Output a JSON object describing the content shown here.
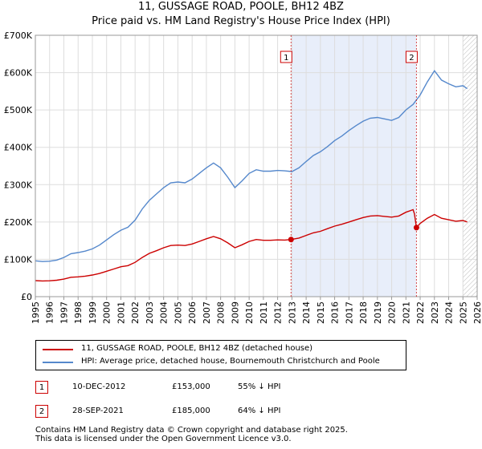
{
  "title_line1": "11, GUSSAGE ROAD, POOLE, BH12 4BZ",
  "title_line2": "Price paid vs. HM Land Registry's House Price Index (HPI)",
  "colors": {
    "price_line": "#cc0000",
    "hpi_line": "#5588cc",
    "shade": "#e8eefa",
    "grid": "#dddddd"
  },
  "chart_data": {
    "type": "line",
    "xlim": [
      1995,
      2026
    ],
    "ylim": [
      0,
      700000
    ],
    "x_ticks": [
      "1995",
      "1996",
      "1997",
      "1998",
      "1999",
      "2000",
      "2001",
      "2002",
      "2003",
      "2004",
      "2005",
      "2006",
      "2007",
      "2008",
      "2009",
      "2010",
      "2011",
      "2012",
      "2013",
      "2014",
      "2015",
      "2016",
      "2017",
      "2018",
      "2019",
      "2020",
      "2021",
      "2022",
      "2023",
      "2024",
      "2025",
      "2026"
    ],
    "y_ticks": [
      {
        "value": 0,
        "label": "£0"
      },
      {
        "value": 100000,
        "label": "£100K"
      },
      {
        "value": 200000,
        "label": "£200K"
      },
      {
        "value": 300000,
        "label": "£300K"
      },
      {
        "value": 400000,
        "label": "£400K"
      },
      {
        "value": 500000,
        "label": "£500K"
      },
      {
        "value": 600000,
        "label": "£600K"
      },
      {
        "value": 700000,
        "label": "£700K"
      }
    ],
    "shaded_range": [
      2012.94,
      2021.74
    ],
    "hatched_from": 2025.0,
    "series": [
      {
        "name": "HPI: Average price, detached house, Bournemouth Christchurch and Poole",
        "color": "#5588cc",
        "points": [
          [
            1995.0,
            96000
          ],
          [
            1995.5,
            94000
          ],
          [
            1996.0,
            95000
          ],
          [
            1996.5,
            98000
          ],
          [
            1997.0,
            105000
          ],
          [
            1997.5,
            115000
          ],
          [
            1998.0,
            118000
          ],
          [
            1998.5,
            122000
          ],
          [
            1999.0,
            128000
          ],
          [
            1999.5,
            138000
          ],
          [
            2000.0,
            152000
          ],
          [
            2000.5,
            166000
          ],
          [
            2001.0,
            178000
          ],
          [
            2001.5,
            186000
          ],
          [
            2002.0,
            205000
          ],
          [
            2002.5,
            235000
          ],
          [
            2003.0,
            258000
          ],
          [
            2003.5,
            275000
          ],
          [
            2004.0,
            292000
          ],
          [
            2004.5,
            305000
          ],
          [
            2005.0,
            307000
          ],
          [
            2005.5,
            305000
          ],
          [
            2006.0,
            315000
          ],
          [
            2006.5,
            330000
          ],
          [
            2007.0,
            345000
          ],
          [
            2007.5,
            358000
          ],
          [
            2008.0,
            345000
          ],
          [
            2008.5,
            320000
          ],
          [
            2009.0,
            292000
          ],
          [
            2009.5,
            310000
          ],
          [
            2010.0,
            330000
          ],
          [
            2010.5,
            340000
          ],
          [
            2011.0,
            336000
          ],
          [
            2011.5,
            336000
          ],
          [
            2012.0,
            338000
          ],
          [
            2012.5,
            337000
          ],
          [
            2013.0,
            335000
          ],
          [
            2013.5,
            345000
          ],
          [
            2014.0,
            362000
          ],
          [
            2014.5,
            378000
          ],
          [
            2015.0,
            388000
          ],
          [
            2015.5,
            402000
          ],
          [
            2016.0,
            418000
          ],
          [
            2016.5,
            430000
          ],
          [
            2017.0,
            445000
          ],
          [
            2017.5,
            458000
          ],
          [
            2018.0,
            470000
          ],
          [
            2018.5,
            478000
          ],
          [
            2019.0,
            480000
          ],
          [
            2019.5,
            476000
          ],
          [
            2020.0,
            472000
          ],
          [
            2020.5,
            480000
          ],
          [
            2021.0,
            500000
          ],
          [
            2021.5,
            515000
          ],
          [
            2022.0,
            540000
          ],
          [
            2022.5,
            575000
          ],
          [
            2023.0,
            605000
          ],
          [
            2023.5,
            580000
          ],
          [
            2024.0,
            570000
          ],
          [
            2024.5,
            562000
          ],
          [
            2025.0,
            565000
          ],
          [
            2025.3,
            557000
          ]
        ]
      },
      {
        "name": "11, GUSSAGE ROAD, POOLE, BH12 4BZ (detached house)",
        "color": "#cc0000",
        "points": [
          [
            1995.0,
            43000
          ],
          [
            1995.5,
            42000
          ],
          [
            1996.0,
            42500
          ],
          [
            1996.5,
            44000
          ],
          [
            1997.0,
            47000
          ],
          [
            1997.5,
            52000
          ],
          [
            1998.0,
            53000
          ],
          [
            1998.5,
            55000
          ],
          [
            1999.0,
            58000
          ],
          [
            1999.5,
            62000
          ],
          [
            2000.0,
            68000
          ],
          [
            2000.5,
            74000
          ],
          [
            2001.0,
            80000
          ],
          [
            2001.5,
            83000
          ],
          [
            2002.0,
            92000
          ],
          [
            2002.5,
            105000
          ],
          [
            2003.0,
            116000
          ],
          [
            2003.5,
            123000
          ],
          [
            2004.0,
            131000
          ],
          [
            2004.5,
            137000
          ],
          [
            2005.0,
            138000
          ],
          [
            2005.5,
            137000
          ],
          [
            2006.0,
            141000
          ],
          [
            2006.5,
            148000
          ],
          [
            2007.0,
            155000
          ],
          [
            2007.5,
            161000
          ],
          [
            2008.0,
            155000
          ],
          [
            2008.5,
            144000
          ],
          [
            2009.0,
            131000
          ],
          [
            2009.5,
            139000
          ],
          [
            2010.0,
            148000
          ],
          [
            2010.5,
            153000
          ],
          [
            2011.0,
            151000
          ],
          [
            2011.5,
            151000
          ],
          [
            2012.0,
            152000
          ],
          [
            2012.5,
            151500
          ],
          [
            2012.94,
            153000
          ],
          [
            2013.5,
            157000
          ],
          [
            2014.0,
            164000
          ],
          [
            2014.5,
            171000
          ],
          [
            2015.0,
            175000
          ],
          [
            2015.5,
            182000
          ],
          [
            2016.0,
            189000
          ],
          [
            2016.5,
            194000
          ],
          [
            2017.0,
            200000
          ],
          [
            2017.5,
            206000
          ],
          [
            2018.0,
            212000
          ],
          [
            2018.5,
            216000
          ],
          [
            2019.0,
            217000
          ],
          [
            2019.5,
            215000
          ],
          [
            2020.0,
            213000
          ],
          [
            2020.5,
            216000
          ],
          [
            2021.0,
            226000
          ],
          [
            2021.5,
            233000
          ],
          [
            2021.6,
            222000
          ],
          [
            2021.74,
            185000
          ],
          [
            2022.0,
            196000
          ],
          [
            2022.5,
            210000
          ],
          [
            2023.0,
            220000
          ],
          [
            2023.5,
            210000
          ],
          [
            2024.0,
            206000
          ],
          [
            2024.5,
            202000
          ],
          [
            2025.0,
            204000
          ],
          [
            2025.3,
            200000
          ]
        ]
      }
    ],
    "markers": [
      {
        "label": "1",
        "x": 2012.94,
        "y": 153000
      },
      {
        "label": "2",
        "x": 2021.74,
        "y": 185000
      }
    ]
  },
  "legend": {
    "property_label": "11, GUSSAGE ROAD, POOLE, BH12 4BZ (detached house)",
    "hpi_label": "HPI: Average price, detached house, Bournemouth Christchurch and Poole"
  },
  "transactions": [
    {
      "num": "1",
      "date": "10-DEC-2012",
      "price": "£153,000",
      "hpi": "55% ↓ HPI"
    },
    {
      "num": "2",
      "date": "28-SEP-2021",
      "price": "£185,000",
      "hpi": "64% ↓ HPI"
    }
  ],
  "footer_line1": "Contains HM Land Registry data © Crown copyright and database right 2025.",
  "footer_line2": "This data is licensed under the Open Government Licence v3.0."
}
